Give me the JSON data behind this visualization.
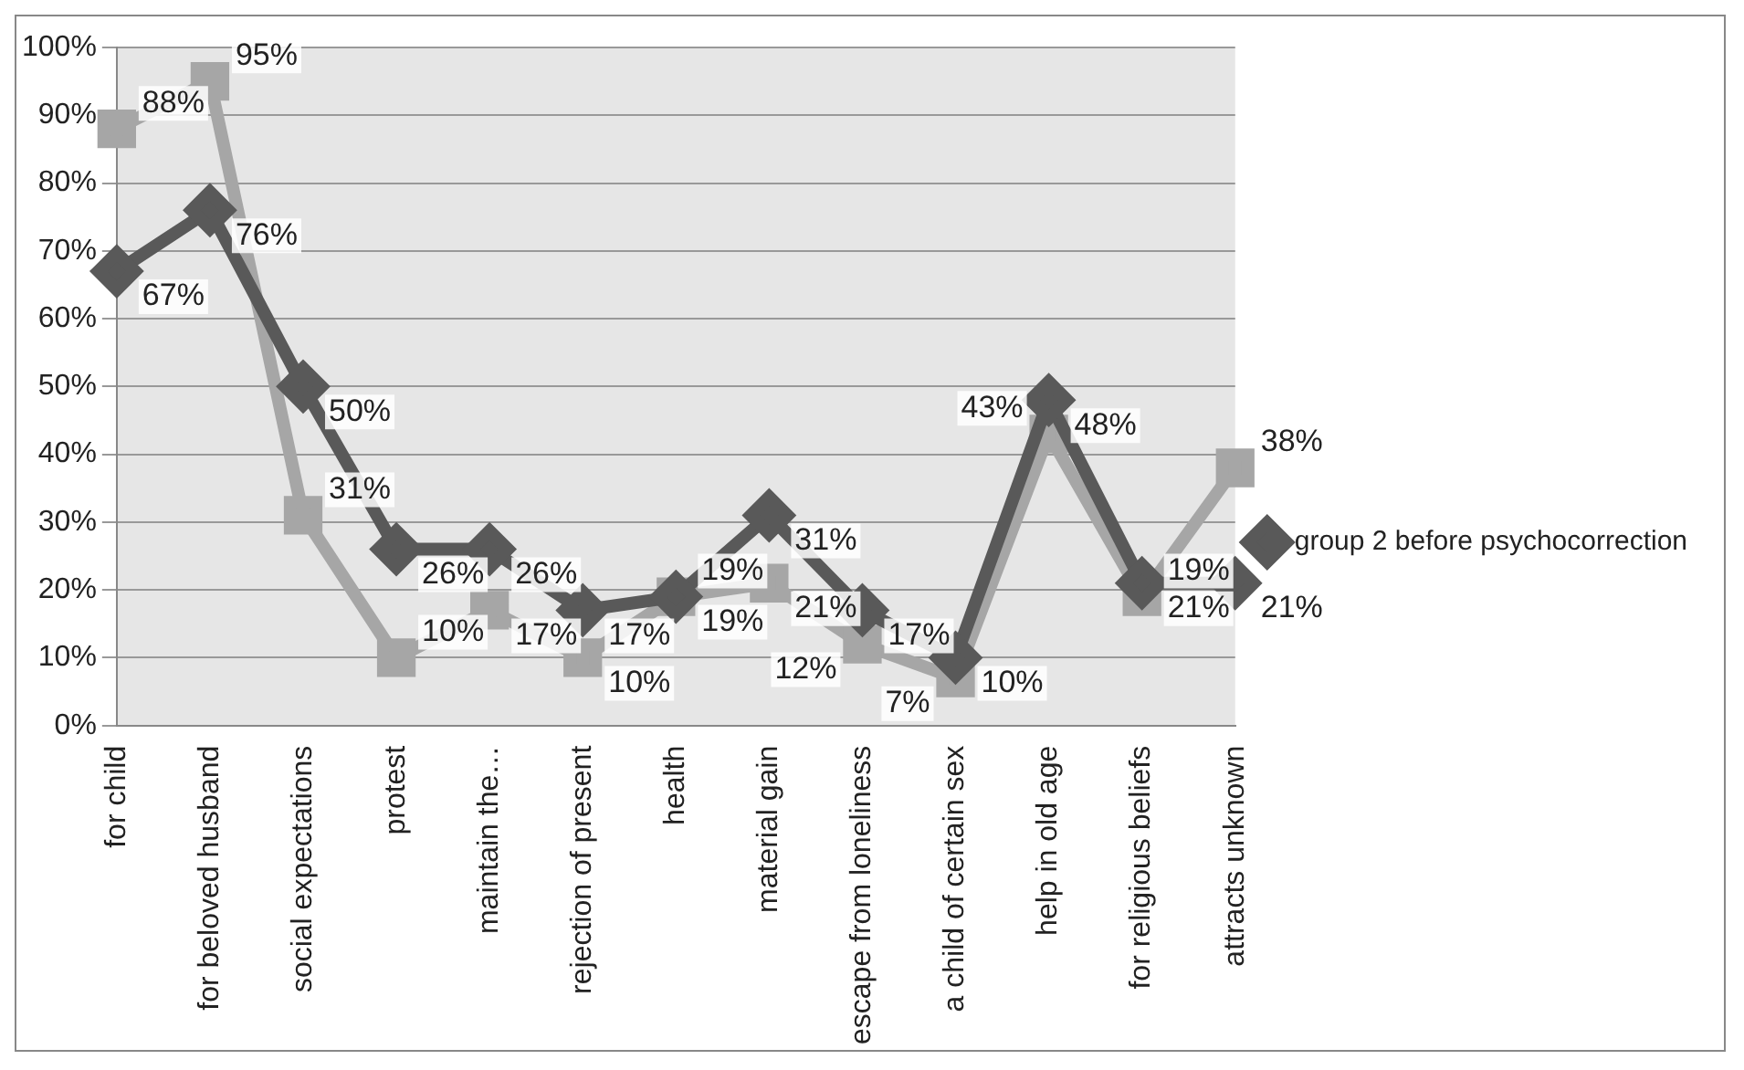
{
  "chart_data": {
    "type": "line",
    "categories": [
      "for child",
      "for beloved husband",
      "social expectations",
      "protest",
      "maintain the…",
      "rejection of present",
      "health",
      "material gain",
      "escape from loneliness",
      "a child of certain sex",
      "help in old age",
      "for religious beliefs",
      "attracts unknown"
    ],
    "series": [
      {
        "name": "group 2 before psychocorrection",
        "color": "#595959",
        "marker": "diamond",
        "values": [
          67,
          76,
          50,
          26,
          26,
          17,
          19,
          31,
          17,
          10,
          48,
          21,
          21
        ],
        "value_labels": [
          "67%",
          "76%",
          "50%",
          "26%",
          "26%",
          "17%",
          "19%",
          "31%",
          "17%",
          "10%",
          "48%",
          "21%",
          "21%"
        ]
      },
      {
        "color": "#a6a6a6",
        "marker": "square",
        "values": [
          88,
          95,
          31,
          10,
          17,
          10,
          19,
          21,
          12,
          7,
          43,
          19,
          38
        ],
        "value_labels": [
          "88%",
          "95%",
          "31%",
          "10%",
          "17%",
          "10%",
          "19%",
          "21%",
          "12%",
          "7%",
          "43%",
          "19%",
          "38%"
        ]
      }
    ],
    "ylim": [
      0,
      100
    ],
    "yticks": [
      {
        "value": 0,
        "label": "0%"
      },
      {
        "value": 10,
        "label": "10%"
      },
      {
        "value": 20,
        "label": "20%"
      },
      {
        "value": 30,
        "label": "30%"
      },
      {
        "value": 40,
        "label": "40%"
      },
      {
        "value": 50,
        "label": "50%"
      },
      {
        "value": 60,
        "label": "60%"
      },
      {
        "value": 70,
        "label": "70%"
      },
      {
        "value": 80,
        "label": "80%"
      },
      {
        "value": 90,
        "label": "90%"
      },
      {
        "value": 100,
        "label": "100%"
      }
    ],
    "grid": "y",
    "legend": "right"
  }
}
